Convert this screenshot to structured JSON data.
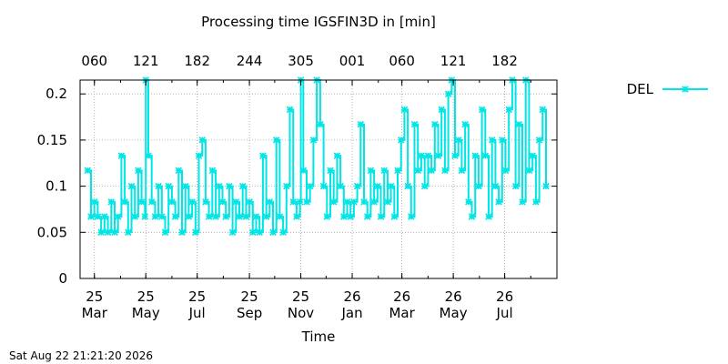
{
  "chart_data": {
    "type": "line",
    "title": "Processing time IGSFIN3D in [min]",
    "xlabel": "Time",
    "ylabel": "",
    "ylim": [
      0,
      0.215
    ],
    "yticks": [
      {
        "value": 0,
        "label": "0"
      },
      {
        "value": 0.05,
        "label": "0.05"
      },
      {
        "value": 0.1,
        "label": "0.1"
      },
      {
        "value": 0.15,
        "label": "0.15"
      },
      {
        "value": 0.2,
        "label": "0.2"
      }
    ],
    "xlim": [
      "2025-02-12",
      "2026-09-01"
    ],
    "xticks_bottom": [
      {
        "date": "2025-03-01",
        "line1": "25",
        "line2": "Mar"
      },
      {
        "date": "2025-05-01",
        "line1": "25",
        "line2": "May"
      },
      {
        "date": "2025-07-01",
        "line1": "25",
        "line2": "Jul"
      },
      {
        "date": "2025-09-01",
        "line1": "25",
        "line2": "Sep"
      },
      {
        "date": "2025-11-01",
        "line1": "25",
        "line2": "Nov"
      },
      {
        "date": "2026-01-01",
        "line1": "26",
        "line2": "Jan"
      },
      {
        "date": "2026-03-01",
        "line1": "26",
        "line2": "Mar"
      },
      {
        "date": "2026-05-01",
        "line1": "26",
        "line2": "May"
      },
      {
        "date": "2026-07-01",
        "line1": "26",
        "line2": "Jul"
      }
    ],
    "xticks_top": [
      {
        "date": "2025-03-01",
        "label": "060"
      },
      {
        "date": "2025-05-01",
        "label": "121"
      },
      {
        "date": "2025-07-01",
        "label": "182"
      },
      {
        "date": "2025-09-01",
        "label": "244"
      },
      {
        "date": "2025-11-01",
        "label": "305"
      },
      {
        "date": "2026-01-01",
        "label": "001"
      },
      {
        "date": "2026-03-01",
        "label": "060"
      },
      {
        "date": "2026-05-01",
        "label": "121"
      },
      {
        "date": "2026-07-01",
        "label": "182"
      }
    ],
    "grid": true,
    "legend": {
      "position": "top-right"
    },
    "series": [
      {
        "name": "DEL",
        "color": "#00e5e5",
        "marker": "star",
        "points": [
          [
            "2025-02-21",
            0.117
          ],
          [
            "2025-02-25",
            0.067
          ],
          [
            "2025-03-01",
            0.083
          ],
          [
            "2025-03-05",
            0.067
          ],
          [
            "2025-03-09",
            0.05
          ],
          [
            "2025-03-13",
            0.067
          ],
          [
            "2025-03-17",
            0.05
          ],
          [
            "2025-03-21",
            0.083
          ],
          [
            "2025-03-25",
            0.05
          ],
          [
            "2025-03-29",
            0.067
          ],
          [
            "2025-04-02",
            0.133
          ],
          [
            "2025-04-06",
            0.083
          ],
          [
            "2025-04-10",
            0.05
          ],
          [
            "2025-04-14",
            0.1
          ],
          [
            "2025-04-18",
            0.067
          ],
          [
            "2025-04-22",
            0.117
          ],
          [
            "2025-04-26",
            0.083
          ],
          [
            "2025-04-30",
            0.067
          ],
          [
            "2025-05-01",
            0.215
          ],
          [
            "2025-05-04",
            0.133
          ],
          [
            "2025-05-08",
            0.083
          ],
          [
            "2025-05-12",
            0.067
          ],
          [
            "2025-05-16",
            0.1
          ],
          [
            "2025-05-20",
            0.067
          ],
          [
            "2025-05-24",
            0.05
          ],
          [
            "2025-05-28",
            0.1
          ],
          [
            "2025-06-01",
            0.083
          ],
          [
            "2025-06-05",
            0.067
          ],
          [
            "2025-06-09",
            0.117
          ],
          [
            "2025-06-13",
            0.05
          ],
          [
            "2025-06-17",
            0.1
          ],
          [
            "2025-06-21",
            0.067
          ],
          [
            "2025-06-25",
            0.083
          ],
          [
            "2025-06-29",
            0.05
          ],
          [
            "2025-07-03",
            0.133
          ],
          [
            "2025-07-07",
            0.15
          ],
          [
            "2025-07-11",
            0.083
          ],
          [
            "2025-07-15",
            0.067
          ],
          [
            "2025-07-19",
            0.117
          ],
          [
            "2025-07-23",
            0.067
          ],
          [
            "2025-07-27",
            0.1
          ],
          [
            "2025-07-31",
            0.083
          ],
          [
            "2025-08-04",
            0.067
          ],
          [
            "2025-08-08",
            0.1
          ],
          [
            "2025-08-12",
            0.05
          ],
          [
            "2025-08-16",
            0.083
          ],
          [
            "2025-08-20",
            0.067
          ],
          [
            "2025-08-24",
            0.1
          ],
          [
            "2025-08-28",
            0.067
          ],
          [
            "2025-09-01",
            0.083
          ],
          [
            "2025-09-05",
            0.05
          ],
          [
            "2025-09-09",
            0.067
          ],
          [
            "2025-09-13",
            0.05
          ],
          [
            "2025-09-17",
            0.133
          ],
          [
            "2025-09-21",
            0.067
          ],
          [
            "2025-09-25",
            0.083
          ],
          [
            "2025-09-29",
            0.05
          ],
          [
            "2025-10-03",
            0.15
          ],
          [
            "2025-10-07",
            0.067
          ],
          [
            "2025-10-11",
            0.05
          ],
          [
            "2025-10-15",
            0.1
          ],
          [
            "2025-10-19",
            0.183
          ],
          [
            "2025-10-23",
            0.083
          ],
          [
            "2025-10-27",
            0.067
          ],
          [
            "2025-10-31",
            0.083
          ],
          [
            "2025-11-01",
            0.215
          ],
          [
            "2025-11-04",
            0.117
          ],
          [
            "2025-11-08",
            0.083
          ],
          [
            "2025-11-12",
            0.1
          ],
          [
            "2025-11-16",
            0.15
          ],
          [
            "2025-11-20",
            0.215
          ],
          [
            "2025-11-24",
            0.167
          ],
          [
            "2025-11-28",
            0.1
          ],
          [
            "2025-12-02",
            0.067
          ],
          [
            "2025-12-06",
            0.117
          ],
          [
            "2025-12-10",
            0.083
          ],
          [
            "2025-12-14",
            0.133
          ],
          [
            "2025-12-18",
            0.1
          ],
          [
            "2025-12-22",
            0.067
          ],
          [
            "2025-12-26",
            0.083
          ],
          [
            "2025-12-30",
            0.067
          ],
          [
            "2026-01-03",
            0.083
          ],
          [
            "2026-01-07",
            0.1
          ],
          [
            "2026-01-11",
            0.167
          ],
          [
            "2026-01-15",
            0.083
          ],
          [
            "2026-01-19",
            0.067
          ],
          [
            "2026-01-23",
            0.117
          ],
          [
            "2026-01-27",
            0.083
          ],
          [
            "2026-01-31",
            0.1
          ],
          [
            "2026-02-04",
            0.067
          ],
          [
            "2026-02-08",
            0.117
          ],
          [
            "2026-02-12",
            0.083
          ],
          [
            "2026-02-16",
            0.1
          ],
          [
            "2026-02-20",
            0.067
          ],
          [
            "2026-02-24",
            0.117
          ],
          [
            "2026-02-28",
            0.15
          ],
          [
            "2026-03-04",
            0.183
          ],
          [
            "2026-03-08",
            0.1
          ],
          [
            "2026-03-12",
            0.067
          ],
          [
            "2026-03-16",
            0.167
          ],
          [
            "2026-03-20",
            0.117
          ],
          [
            "2026-03-24",
            0.133
          ],
          [
            "2026-03-28",
            0.1
          ],
          [
            "2026-04-01",
            0.133
          ],
          [
            "2026-04-05",
            0.117
          ],
          [
            "2026-04-09",
            0.167
          ],
          [
            "2026-04-13",
            0.133
          ],
          [
            "2026-04-17",
            0.183
          ],
          [
            "2026-04-21",
            0.117
          ],
          [
            "2026-04-25",
            0.2
          ],
          [
            "2026-04-29",
            0.215
          ],
          [
            "2026-05-03",
            0.133
          ],
          [
            "2026-05-07",
            0.15
          ],
          [
            "2026-05-11",
            0.117
          ],
          [
            "2026-05-15",
            0.167
          ],
          [
            "2026-05-19",
            0.083
          ],
          [
            "2026-05-23",
            0.067
          ],
          [
            "2026-05-27",
            0.133
          ],
          [
            "2026-05-31",
            0.1
          ],
          [
            "2026-06-04",
            0.183
          ],
          [
            "2026-06-08",
            0.133
          ],
          [
            "2026-06-12",
            0.067
          ],
          [
            "2026-06-16",
            0.15
          ],
          [
            "2026-06-20",
            0.1
          ],
          [
            "2026-06-24",
            0.083
          ],
          [
            "2026-06-28",
            0.15
          ],
          [
            "2026-07-02",
            0.117
          ],
          [
            "2026-07-06",
            0.183
          ],
          [
            "2026-07-10",
            0.215
          ],
          [
            "2026-07-14",
            0.1
          ],
          [
            "2026-07-18",
            0.167
          ],
          [
            "2026-07-22",
            0.083
          ],
          [
            "2026-07-26",
            0.215
          ],
          [
            "2026-07-30",
            0.117
          ],
          [
            "2026-08-03",
            0.133
          ],
          [
            "2026-08-07",
            0.083
          ],
          [
            "2026-08-11",
            0.15
          ],
          [
            "2026-08-15",
            0.183
          ],
          [
            "2026-08-19",
            0.1
          ]
        ]
      }
    ]
  },
  "footer": {
    "timestamp": "Sat Aug 22 21:21:20 2026"
  }
}
